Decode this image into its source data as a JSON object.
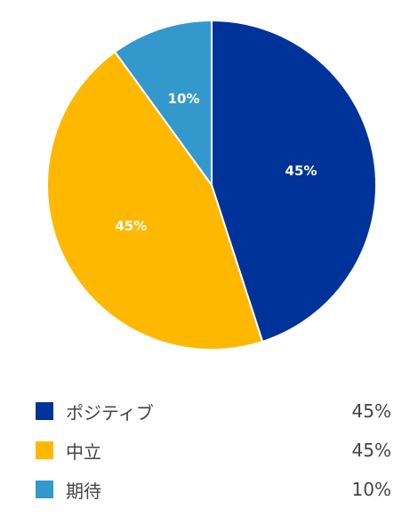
{
  "chart_data": {
    "type": "pie",
    "categories": [
      "ポジティブ",
      "中立",
      "期待"
    ],
    "values": [
      45,
      45,
      10
    ],
    "value_labels": [
      "45%",
      "45%",
      "10%"
    ],
    "colors": [
      "#003399",
      "#FFB800",
      "#3399CC"
    ],
    "start": "12 o'clock, clockwise"
  },
  "legend": [
    {
      "label": "ポジティブ",
      "value": "45%",
      "color": "#003399"
    },
    {
      "label": "中立",
      "value": "45%",
      "color": "#FFB800"
    },
    {
      "label": "期待",
      "value": "10%",
      "color": "#3399CC"
    }
  ]
}
